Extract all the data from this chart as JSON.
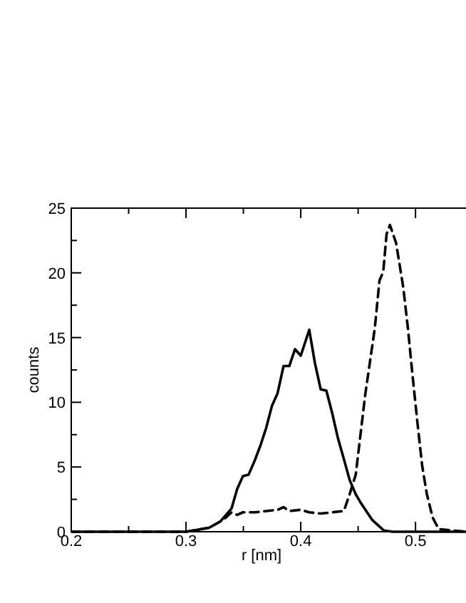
{
  "chart_data": {
    "type": "line",
    "xlabel": "r [nm]",
    "ylabel": "counts",
    "xlim": [
      0.2,
      0.544
    ],
    "ylim": [
      0,
      25
    ],
    "xticks": [
      0.2,
      {
        "value": 0.25,
        "label": null
      },
      0.3,
      {
        "value": 0.35,
        "label": null
      },
      0.4,
      {
        "value": 0.45,
        "label": null
      },
      0.5
    ],
    "yticks": [
      0,
      {
        "value": 2.5,
        "label": null
      },
      5,
      {
        "value": 7.5,
        "label": null
      },
      10,
      {
        "value": 12.5,
        "label": null
      },
      15,
      {
        "value": 17.5,
        "label": null
      },
      20,
      {
        "value": 22.5,
        "label": null
      },
      25
    ],
    "grid": false,
    "marker": "none",
    "series": [
      {
        "color": "#000000",
        "line_style": "solid",
        "x": [
          0.2,
          0.3,
          0.32,
          0.33,
          0.3397,
          0.3446,
          0.3496,
          0.3545,
          0.3599,
          0.365,
          0.3698,
          0.3748,
          0.3798,
          0.385,
          0.39,
          0.395,
          0.4,
          0.4074,
          0.4124,
          0.4174,
          0.4223,
          0.4273,
          0.4322,
          0.4376,
          0.4426,
          0.4479,
          0.4525,
          0.4624,
          0.4723,
          0.48,
          0.544
        ],
        "values": [
          0,
          0,
          0.3,
          0.8,
          1.8,
          3.3,
          4.3,
          4.4,
          5.5,
          6.7,
          8,
          9.7,
          10.7,
          12.8,
          12.8,
          14.1,
          13.6,
          15.6,
          13,
          11,
          10.9,
          9.2,
          7.3,
          5.6,
          4,
          2.9,
          2.2,
          0.9,
          0.1,
          0,
          0
        ]
      },
      {
        "color": "#000000",
        "line_style": "dashed",
        "x": [
          0.2,
          0.3,
          0.32,
          0.3322,
          0.3397,
          0.3446,
          0.3496,
          0.36,
          0.37,
          0.38,
          0.385,
          0.39,
          0.4,
          0.4074,
          0.4174,
          0.4273,
          0.4376,
          0.4426,
          0.4479,
          0.4562,
          0.4645,
          0.4686,
          0.4719,
          0.4748,
          0.4777,
          0.4831,
          0.4893,
          0.4934,
          0.4975,
          0.5017,
          0.5058,
          0.5099,
          0.5149,
          0.5202,
          0.544
        ],
        "values": [
          0,
          0,
          0.3,
          0.9,
          1.5,
          1.3,
          1.5,
          1.5,
          1.6,
          1.7,
          1.9,
          1.6,
          1.7,
          1.5,
          1.4,
          1.5,
          1.6,
          2.9,
          4.4,
          10.6,
          15.7,
          19.4,
          20.1,
          23,
          23.7,
          22.3,
          18.9,
          15.7,
          12,
          8.4,
          5.1,
          2.9,
          1.1,
          0.2,
          0
        ]
      }
    ]
  }
}
